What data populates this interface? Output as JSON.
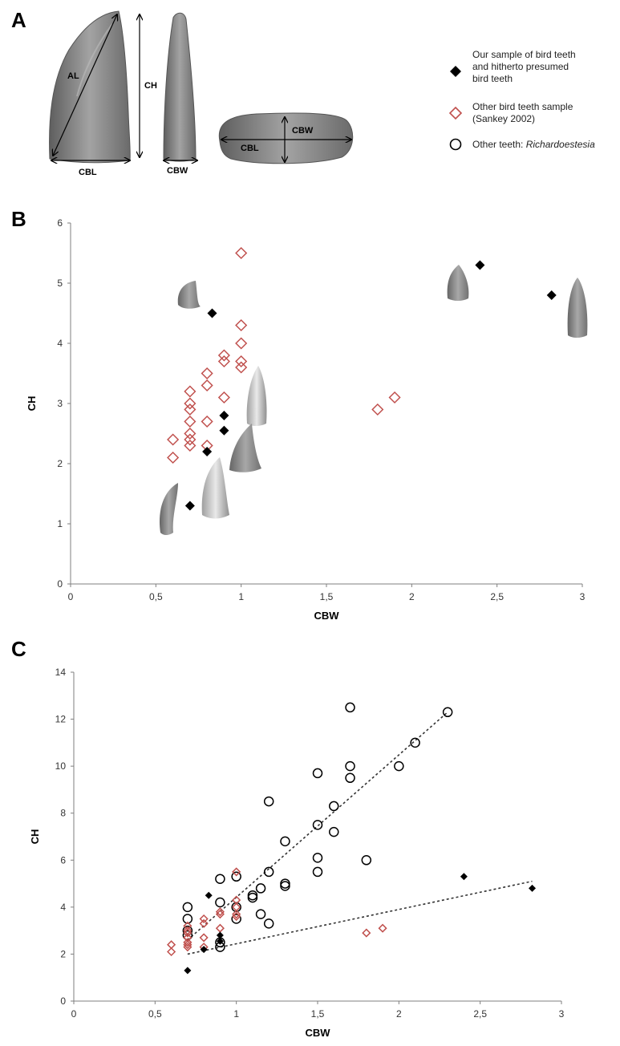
{
  "panels": {
    "A": "A",
    "B": "B",
    "C": "C"
  },
  "panel_a": {
    "measurement_labels": [
      "AL",
      "CH",
      "CBL",
      "CBW",
      "CBL",
      "CBW"
    ]
  },
  "colors": {
    "bird_sample": "#000000",
    "sankey": "#c0504d",
    "richardoestesia": "#000000",
    "axis": "#7f7f7f",
    "trend": "#333333",
    "tooth": "#8a8a8a"
  },
  "legend": {
    "placement": "top-right",
    "entries": [
      {
        "marker": "filled-diamond",
        "lines": [
          "Our sample of bird teeth",
          "and hitherto presumed",
          "bird teeth"
        ]
      },
      {
        "marker": "open-diamond",
        "lines": [
          "Other bird teeth sample",
          "(Sankey 2002)"
        ]
      },
      {
        "marker": "open-circle",
        "prefix": "Other teeth: ",
        "italic": "Richardoestesia"
      }
    ]
  },
  "chart_data": [
    {
      "panel": "B",
      "type": "scatter",
      "xlabel": "CBW",
      "ylabel": "CH",
      "xlim": [
        0,
        3
      ],
      "ylim": [
        0,
        6
      ],
      "xticks": [
        "0",
        "0,5",
        "1",
        "1,5",
        "2",
        "2,5",
        "3"
      ],
      "yticks": [
        "0",
        "1",
        "2",
        "3",
        "4",
        "5",
        "6"
      ],
      "grid": false,
      "series": [
        {
          "marker": "filled-diamond",
          "points": [
            [
              0.7,
              1.3
            ],
            [
              0.8,
              2.2
            ],
            [
              0.9,
              2.55
            ],
            [
              0.9,
              2.8
            ],
            [
              0.83,
              4.5
            ],
            [
              2.4,
              5.3
            ],
            [
              2.82,
              4.8
            ]
          ]
        },
        {
          "marker": "open-diamond",
          "points": [
            [
              0.6,
              2.1
            ],
            [
              0.6,
              2.4
            ],
            [
              0.7,
              2.3
            ],
            [
              0.7,
              2.4
            ],
            [
              0.7,
              2.5
            ],
            [
              0.7,
              2.7
            ],
            [
              0.7,
              2.9
            ],
            [
              0.7,
              3.0
            ],
            [
              0.7,
              3.2
            ],
            [
              0.8,
              2.3
            ],
            [
              0.8,
              2.7
            ],
            [
              0.8,
              3.3
            ],
            [
              0.8,
              3.5
            ],
            [
              0.9,
              3.1
            ],
            [
              0.9,
              3.7
            ],
            [
              0.9,
              3.8
            ],
            [
              1.0,
              3.6
            ],
            [
              1.0,
              3.7
            ],
            [
              1.0,
              4.0
            ],
            [
              1.0,
              4.3
            ],
            [
              1.0,
              5.5
            ],
            [
              1.8,
              2.9
            ],
            [
              1.9,
              3.1
            ]
          ]
        }
      ]
    },
    {
      "panel": "C",
      "type": "scatter",
      "xlabel": "CBW",
      "ylabel": "CH",
      "xlim": [
        0,
        3
      ],
      "ylim": [
        0,
        14
      ],
      "xticks": [
        "0",
        "0,5",
        "1",
        "1,5",
        "2",
        "2,5",
        "3"
      ],
      "yticks": [
        "0",
        "2",
        "4",
        "6",
        "8",
        "10",
        "12",
        "14"
      ],
      "grid": false,
      "series": [
        {
          "marker": "filled-diamond",
          "points": [
            [
              0.7,
              1.3
            ],
            [
              0.8,
              2.2
            ],
            [
              0.9,
              2.55
            ],
            [
              0.9,
              2.8
            ],
            [
              0.83,
              4.5
            ],
            [
              2.4,
              5.3
            ],
            [
              2.82,
              4.8
            ]
          ]
        },
        {
          "marker": "open-diamond",
          "points": [
            [
              0.6,
              2.1
            ],
            [
              0.6,
              2.4
            ],
            [
              0.7,
              2.3
            ],
            [
              0.7,
              2.4
            ],
            [
              0.7,
              2.5
            ],
            [
              0.7,
              2.7
            ],
            [
              0.7,
              2.9
            ],
            [
              0.7,
              3.0
            ],
            [
              0.7,
              3.2
            ],
            [
              0.8,
              2.3
            ],
            [
              0.8,
              2.7
            ],
            [
              0.8,
              3.3
            ],
            [
              0.8,
              3.5
            ],
            [
              0.9,
              3.1
            ],
            [
              0.9,
              3.7
            ],
            [
              0.9,
              3.8
            ],
            [
              1.0,
              3.6
            ],
            [
              1.0,
              3.7
            ],
            [
              1.0,
              4.0
            ],
            [
              1.0,
              4.3
            ],
            [
              1.0,
              5.5
            ],
            [
              1.8,
              2.9
            ],
            [
              1.9,
              3.1
            ]
          ]
        },
        {
          "marker": "open-circle",
          "points": [
            [
              0.7,
              2.8
            ],
            [
              0.7,
              3.0
            ],
            [
              0.7,
              3.5
            ],
            [
              0.7,
              4.0
            ],
            [
              0.9,
              2.3
            ],
            [
              0.9,
              2.5
            ],
            [
              0.9,
              4.2
            ],
            [
              0.9,
              5.2
            ],
            [
              1.0,
              3.5
            ],
            [
              1.0,
              4.0
            ],
            [
              1.0,
              5.3
            ],
            [
              1.1,
              4.4
            ],
            [
              1.1,
              4.5
            ],
            [
              1.15,
              3.7
            ],
            [
              1.15,
              4.8
            ],
            [
              1.2,
              3.3
            ],
            [
              1.2,
              5.5
            ],
            [
              1.2,
              8.5
            ],
            [
              1.3,
              4.9
            ],
            [
              1.3,
              5.0
            ],
            [
              1.3,
              6.8
            ],
            [
              1.5,
              5.5
            ],
            [
              1.5,
              6.1
            ],
            [
              1.5,
              7.5
            ],
            [
              1.5,
              9.7
            ],
            [
              1.6,
              7.2
            ],
            [
              1.6,
              8.3
            ],
            [
              1.7,
              9.5
            ],
            [
              1.7,
              10.0
            ],
            [
              1.7,
              12.5
            ],
            [
              1.8,
              6.0
            ],
            [
              2.0,
              10.0
            ],
            [
              2.1,
              11.0
            ],
            [
              2.3,
              12.3
            ]
          ]
        }
      ],
      "trendlines": [
        {
          "from": [
            0.7,
            2.6
          ],
          "to": [
            2.3,
            12.3
          ]
        },
        {
          "from": [
            0.7,
            2.0
          ],
          "to": [
            2.82,
            5.1
          ]
        }
      ]
    }
  ]
}
